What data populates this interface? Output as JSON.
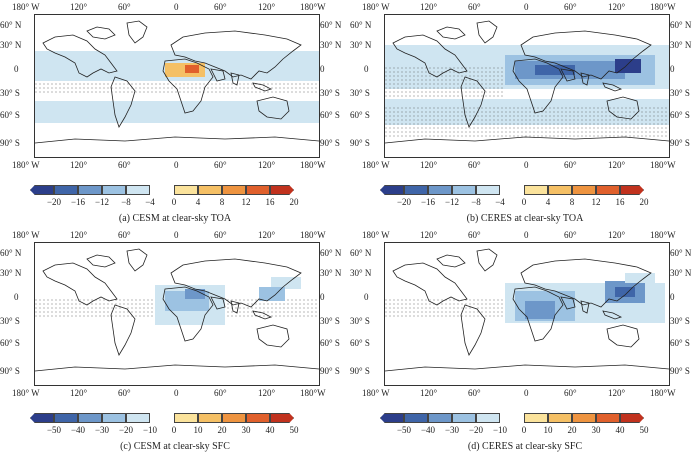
{
  "palette": {
    "neg": [
      "#2c3e8a",
      "#3f65a8",
      "#6d97c9",
      "#9cc2e2",
      "#cfe5f1"
    ],
    "pos": [
      "#fbe39c",
      "#f5c065",
      "#ee9440",
      "#e0602c",
      "#c1321e"
    ]
  },
  "lon_ticks": [
    "180° W",
    "120°",
    "60°",
    "0",
    "60°",
    "120°",
    "180°W"
  ],
  "lat_left": [
    "90° N",
    "60° N",
    "30° N",
    "0",
    "30° S",
    "60° S",
    "90° S"
  ],
  "lat_right": [
    "90° N",
    "60° N",
    "30° N",
    "0",
    "30° S",
    "60° S",
    "90° S"
  ],
  "panels": [
    {
      "caption": "(a) CESM at clear-sky TOA",
      "bar_labels": [
        "−20",
        "−16",
        "−12",
        "−8",
        "−4",
        "0",
        "4",
        "8",
        "12",
        "16",
        "20"
      ]
    },
    {
      "caption": "(b) CERES at clear-sky TOA",
      "bar_labels": [
        "−20",
        "−16",
        "−12",
        "−8",
        "−4",
        "0",
        "4",
        "8",
        "12",
        "16",
        "20"
      ]
    },
    {
      "caption": "(c) CESM at clear-sky SFC",
      "bar_labels": [
        "−50",
        "−40",
        "−30",
        "−20",
        "−10",
        "0",
        "10",
        "20",
        "30",
        "40",
        "50"
      ]
    },
    {
      "caption": "(d) CERES at clear-sky SFC",
      "bar_labels": [
        "−50",
        "−40",
        "−30",
        "−20",
        "−10",
        "0",
        "10",
        "20",
        "30",
        "40",
        "50"
      ]
    }
  ]
}
